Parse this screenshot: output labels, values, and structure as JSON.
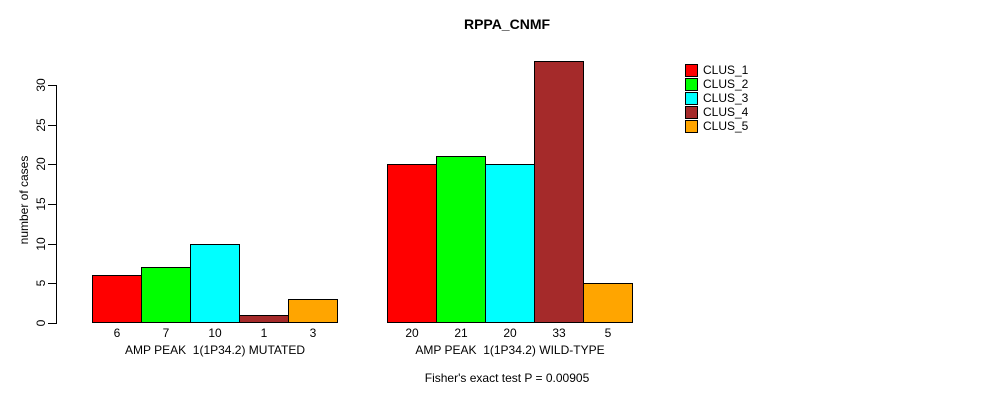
{
  "chart_data": {
    "type": "bar",
    "title": "RPPA_CNMF",
    "ylabel": "number of cases",
    "ylim": [
      0,
      30
    ],
    "yticks": [
      0,
      5,
      10,
      15,
      20,
      25,
      30
    ],
    "grid": false,
    "legend_position": "right",
    "categories": [
      "AMP PEAK  1(1P34.2) MUTATED",
      "AMP PEAK  1(1P34.2) WILD-TYPE"
    ],
    "series": [
      {
        "name": "CLUS_1",
        "color": "#FF0000",
        "values": [
          6,
          20
        ]
      },
      {
        "name": "CLUS_2",
        "color": "#00FF00",
        "values": [
          7,
          21
        ]
      },
      {
        "name": "CLUS_3",
        "color": "#00FFFF",
        "values": [
          10,
          20
        ]
      },
      {
        "name": "CLUS_4",
        "color": "#A52A2A",
        "values": [
          1,
          33
        ]
      },
      {
        "name": "CLUS_5",
        "color": "#FFA500",
        "values": [
          3,
          5
        ]
      }
    ],
    "bar_value_labels": [
      [
        "6",
        "7",
        "10",
        "1",
        "3"
      ],
      [
        "20",
        "21",
        "20",
        "33",
        "5"
      ]
    ],
    "annotation": "Fisher's exact test P = 0.00905",
    "axis_color": "#000000",
    "bar_border_color": "#000000",
    "background_color": "#FFFFFF"
  }
}
